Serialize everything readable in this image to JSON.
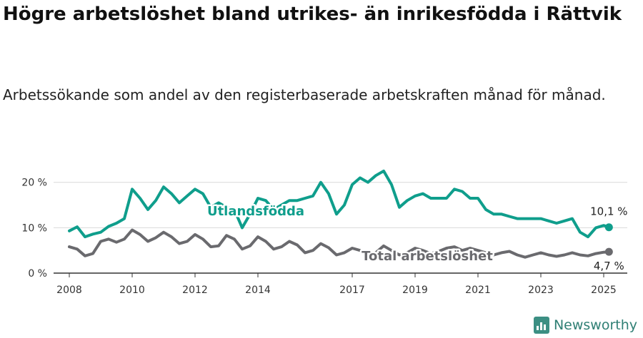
{
  "title": "Högre arbetslöshet bland utrikes- än inrikesfödda i Rättvik",
  "subtitle": "Arbetssökande som andel av den registerbaserade arbetskraften månad för månad.",
  "brand": "Newsworthy",
  "colors": {
    "utlandsfodda": "#0f9e8c",
    "total": "#6a6a6e",
    "grid": "#d9d9d9",
    "axis": "#333333"
  },
  "chart_data": {
    "type": "line",
    "x_ticks": [
      "2008",
      "2010",
      "2012",
      "2014",
      "2017",
      "2019",
      "2021",
      "2023",
      "2025"
    ],
    "y_ticks": [
      "0 %",
      "10 %",
      "20 %"
    ],
    "ylim": [
      0,
      22
    ],
    "xlim": [
      "2007-07",
      "2025-10"
    ],
    "grid": "horizontal",
    "series": [
      {
        "name": "Utlandsfödda",
        "end_label": "10,1 %",
        "points": [
          [
            "2008-01",
            9.3
          ],
          [
            "2008-04",
            10.2
          ],
          [
            "2008-07",
            8.0
          ],
          [
            "2008-10",
            8.6
          ],
          [
            "2009-01",
            9.0
          ],
          [
            "2009-04",
            10.3
          ],
          [
            "2009-07",
            11.0
          ],
          [
            "2009-10",
            12.0
          ],
          [
            "2010-01",
            18.5
          ],
          [
            "2010-04",
            16.5
          ],
          [
            "2010-07",
            14.0
          ],
          [
            "2010-10",
            16.0
          ],
          [
            "2011-01",
            19.0
          ],
          [
            "2011-04",
            17.5
          ],
          [
            "2011-07",
            15.5
          ],
          [
            "2011-10",
            17.0
          ],
          [
            "2012-01",
            18.5
          ],
          [
            "2012-04",
            17.5
          ],
          [
            "2012-07",
            14.5
          ],
          [
            "2012-10",
            15.5
          ],
          [
            "2013-01",
            14.5
          ],
          [
            "2013-04",
            14.0
          ],
          [
            "2013-07",
            10.0
          ],
          [
            "2013-10",
            13.0
          ],
          [
            "2014-01",
            16.5
          ],
          [
            "2014-04",
            16.0
          ],
          [
            "2014-07",
            14.0
          ],
          [
            "2014-10",
            15.0
          ],
          [
            "2015-01",
            16.0
          ],
          [
            "2015-04",
            16.0
          ],
          [
            "2015-07",
            16.5
          ],
          [
            "2015-10",
            17.0
          ],
          [
            "2016-01",
            20.0
          ],
          [
            "2016-04",
            17.5
          ],
          [
            "2016-07",
            13.0
          ],
          [
            "2016-10",
            15.0
          ],
          [
            "2017-01",
            19.5
          ],
          [
            "2017-04",
            21.0
          ],
          [
            "2017-07",
            20.0
          ],
          [
            "2017-10",
            21.5
          ],
          [
            "2018-01",
            22.5
          ],
          [
            "2018-04",
            19.5
          ],
          [
            "2018-07",
            14.5
          ],
          [
            "2018-10",
            16.0
          ],
          [
            "2019-01",
            17.0
          ],
          [
            "2019-04",
            17.5
          ],
          [
            "2019-07",
            16.5
          ],
          [
            "2019-10",
            16.5
          ],
          [
            "2020-01",
            16.5
          ],
          [
            "2020-04",
            18.5
          ],
          [
            "2020-07",
            18.0
          ],
          [
            "2020-10",
            16.5
          ],
          [
            "2021-01",
            16.5
          ],
          [
            "2021-04",
            14.0
          ],
          [
            "2021-07",
            13.0
          ],
          [
            "2021-10",
            13.0
          ],
          [
            "2022-01",
            12.5
          ],
          [
            "2022-04",
            12.0
          ],
          [
            "2022-07",
            12.0
          ],
          [
            "2022-10",
            12.0
          ],
          [
            "2023-01",
            12.0
          ],
          [
            "2023-04",
            11.5
          ],
          [
            "2023-07",
            11.0
          ],
          [
            "2023-10",
            11.5
          ],
          [
            "2024-01",
            12.0
          ],
          [
            "2024-04",
            9.0
          ],
          [
            "2024-07",
            8.0
          ],
          [
            "2024-10",
            10.0
          ],
          [
            "2025-01",
            10.5
          ],
          [
            "2025-03",
            10.1
          ]
        ]
      },
      {
        "name": "Total arbetslöshet",
        "end_label": "4,7 %",
        "points": [
          [
            "2008-01",
            5.8
          ],
          [
            "2008-04",
            5.3
          ],
          [
            "2008-07",
            3.8
          ],
          [
            "2008-10",
            4.3
          ],
          [
            "2009-01",
            7.0
          ],
          [
            "2009-04",
            7.5
          ],
          [
            "2009-07",
            6.8
          ],
          [
            "2009-10",
            7.5
          ],
          [
            "2010-01",
            9.5
          ],
          [
            "2010-04",
            8.5
          ],
          [
            "2010-07",
            7.0
          ],
          [
            "2010-10",
            7.8
          ],
          [
            "2011-01",
            9.0
          ],
          [
            "2011-04",
            8.0
          ],
          [
            "2011-07",
            6.5
          ],
          [
            "2011-10",
            7.0
          ],
          [
            "2012-01",
            8.5
          ],
          [
            "2012-04",
            7.5
          ],
          [
            "2012-07",
            5.8
          ],
          [
            "2012-10",
            6.0
          ],
          [
            "2013-01",
            8.3
          ],
          [
            "2013-04",
            7.5
          ],
          [
            "2013-07",
            5.3
          ],
          [
            "2013-10",
            6.0
          ],
          [
            "2014-01",
            8.0
          ],
          [
            "2014-04",
            7.0
          ],
          [
            "2014-07",
            5.3
          ],
          [
            "2014-10",
            5.8
          ],
          [
            "2015-01",
            7.0
          ],
          [
            "2015-04",
            6.2
          ],
          [
            "2015-07",
            4.5
          ],
          [
            "2015-10",
            5.0
          ],
          [
            "2016-01",
            6.5
          ],
          [
            "2016-04",
            5.6
          ],
          [
            "2016-07",
            4.0
          ],
          [
            "2016-10",
            4.5
          ],
          [
            "2017-01",
            5.5
          ],
          [
            "2017-04",
            5.0
          ],
          [
            "2017-07",
            4.0
          ],
          [
            "2017-10",
            4.5
          ],
          [
            "2018-01",
            6.0
          ],
          [
            "2018-04",
            5.0
          ],
          [
            "2018-07",
            4.0
          ],
          [
            "2018-10",
            4.5
          ],
          [
            "2019-01",
            5.5
          ],
          [
            "2019-04",
            5.0
          ],
          [
            "2019-07",
            4.3
          ],
          [
            "2019-10",
            4.8
          ],
          [
            "2020-01",
            5.5
          ],
          [
            "2020-04",
            5.8
          ],
          [
            "2020-07",
            5.0
          ],
          [
            "2020-10",
            5.5
          ],
          [
            "2021-01",
            5.0
          ],
          [
            "2021-04",
            4.5
          ],
          [
            "2021-07",
            4.0
          ],
          [
            "2021-10",
            4.5
          ],
          [
            "2022-01",
            4.8
          ],
          [
            "2022-04",
            4.0
          ],
          [
            "2022-07",
            3.5
          ],
          [
            "2022-10",
            4.0
          ],
          [
            "2023-01",
            4.5
          ],
          [
            "2023-04",
            4.0
          ],
          [
            "2023-07",
            3.7
          ],
          [
            "2023-10",
            4.0
          ],
          [
            "2024-01",
            4.5
          ],
          [
            "2024-04",
            4.0
          ],
          [
            "2024-07",
            3.8
          ],
          [
            "2024-10",
            4.3
          ],
          [
            "2025-01",
            4.6
          ],
          [
            "2025-03",
            4.7
          ]
        ]
      }
    ]
  }
}
